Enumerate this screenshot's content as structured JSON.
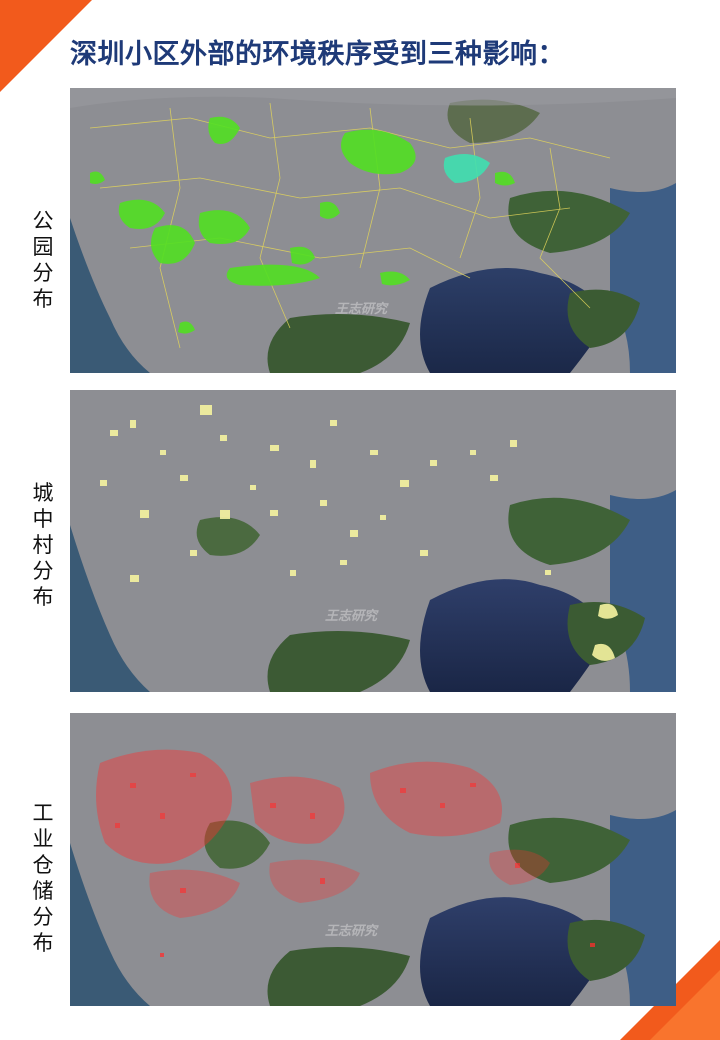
{
  "title": "深圳小区外部的环境秩序受到三种影响：",
  "panels": [
    {
      "label": "公园分布",
      "overlay": "park",
      "overlay_color": "#52e022",
      "watermark": "王志研究"
    },
    {
      "label": "城中村分布",
      "overlay": "village",
      "overlay_color": "#f6f3a0",
      "watermark": "王志研究"
    },
    {
      "label": "工业仓储分布",
      "overlay": "industrial",
      "overlay_color": "#ff2e2e",
      "watermark": "王志研究"
    }
  ],
  "colors": {
    "accent": "#f25a1c",
    "title": "#1e3a78",
    "sea": "#1f2f55",
    "land": "#8e8e92",
    "mountain": "#3d5a36"
  }
}
